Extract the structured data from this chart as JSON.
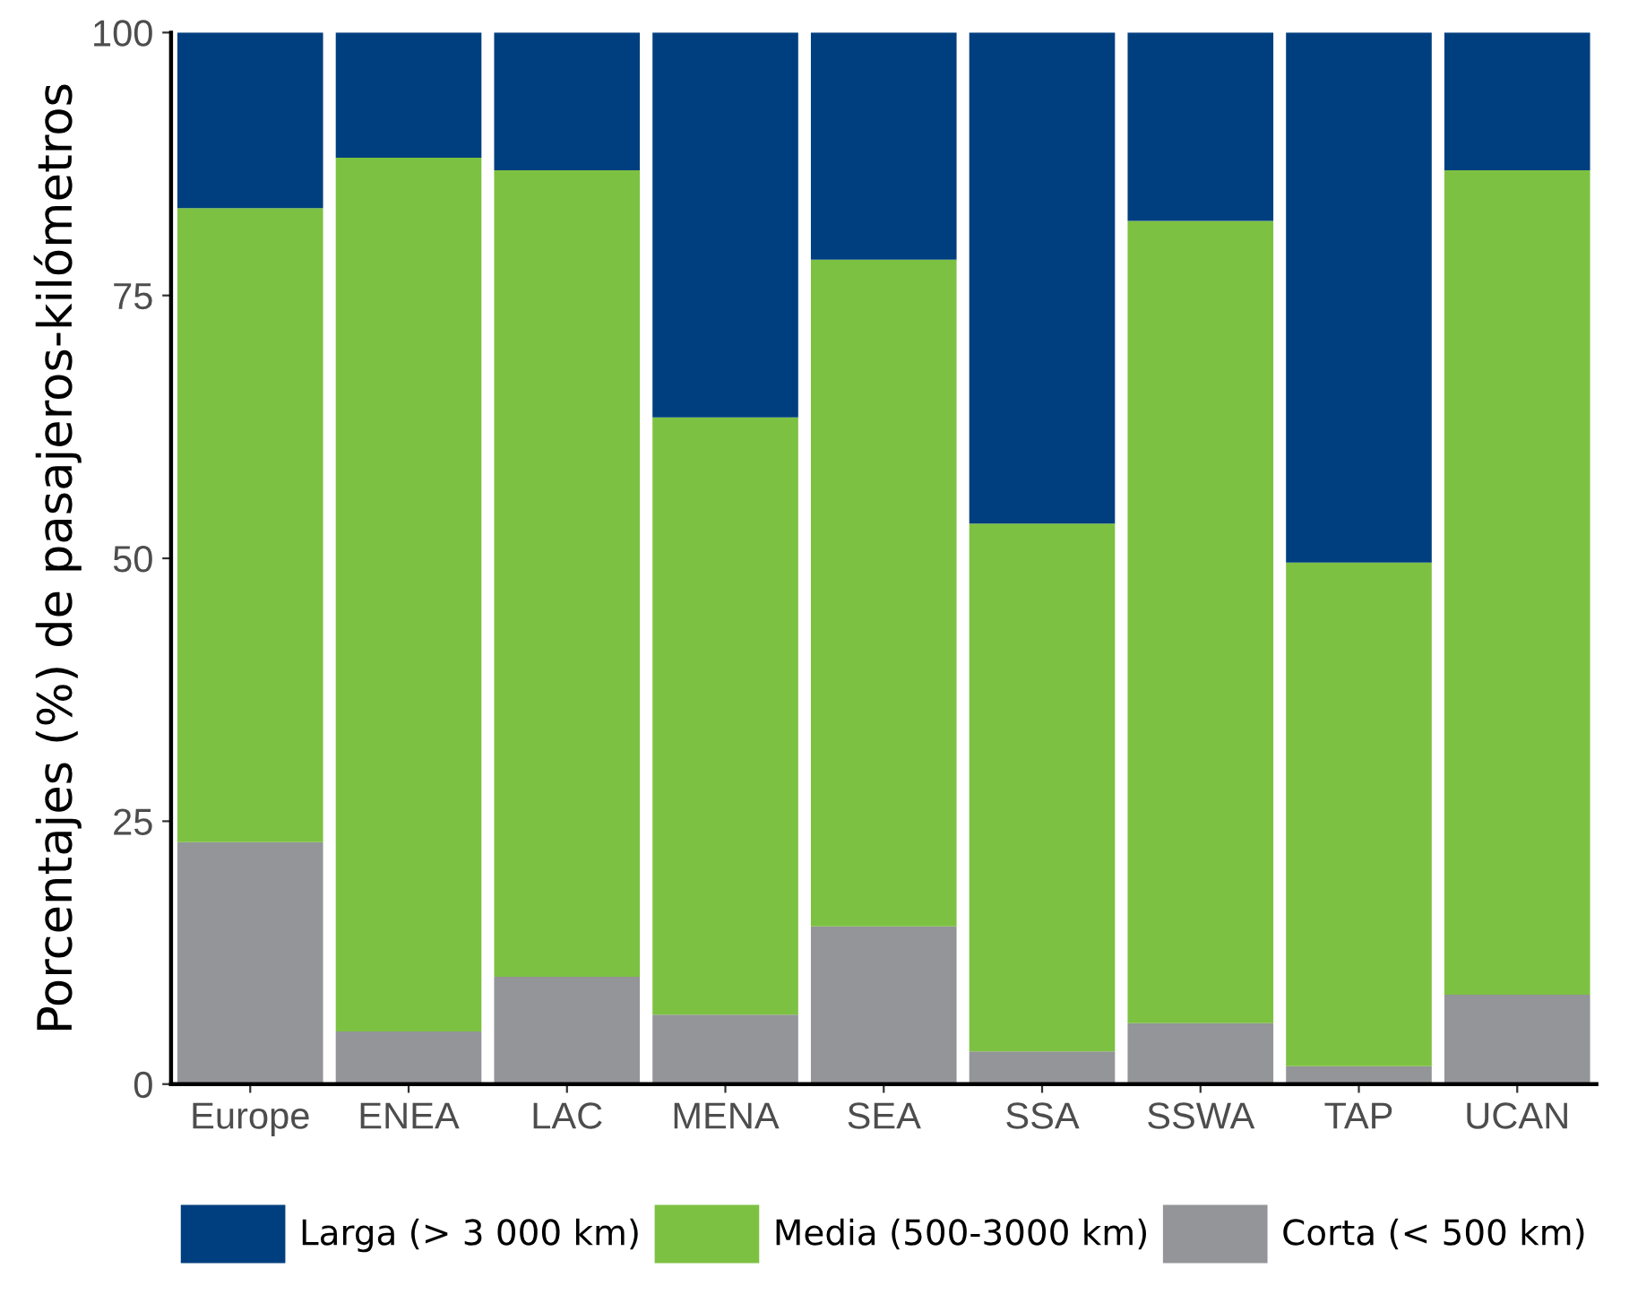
{
  "chart_data": {
    "type": "bar",
    "stacked": true,
    "ylabel": "Porcentajes (%) de pasajeros-kilómetros",
    "categories": [
      "Europe",
      "ENEA",
      "LAC",
      "MENA",
      "SEA",
      "SSA",
      "SSWA",
      "TAP",
      "UCAN"
    ],
    "series": [
      {
        "name": "Corta (< 500 km)",
        "color": "#939598",
        "values": [
          23,
          5,
          10.2,
          6.6,
          15,
          3.1,
          5.8,
          1.7,
          8.5
        ]
      },
      {
        "name": "Media (500-3000 km)",
        "color": "#7dc142",
        "values": [
          60.3,
          83.1,
          76.7,
          56.8,
          63.4,
          50.2,
          76.3,
          47.9,
          78.4
        ]
      },
      {
        "name": "Larga (> 3 000 km)",
        "color": "#003f7f",
        "values": [
          16.7,
          11.9,
          13.1,
          36.6,
          21.6,
          46.7,
          17.9,
          50.4,
          13.1
        ]
      }
    ],
    "ylim": [
      0,
      100
    ],
    "yticks": [
      0,
      25,
      50,
      75,
      100
    ],
    "grid": false,
    "legend": "bottom"
  }
}
